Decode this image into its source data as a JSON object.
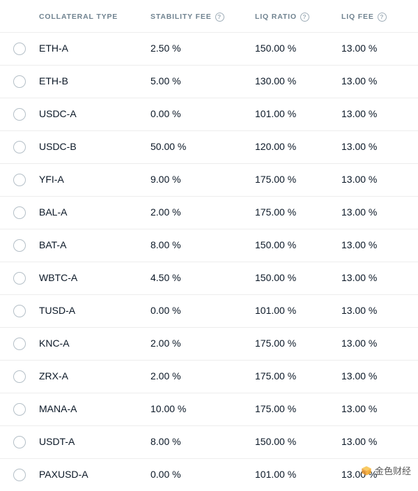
{
  "table": {
    "headers": {
      "collateral": "COLLATERAL TYPE",
      "stability": "STABILITY FEE",
      "liqratio": "LIQ RATIO",
      "liqfee": "LIQ FEE"
    },
    "rows": [
      {
        "collateral": "ETH-A",
        "stability": "2.50 %",
        "liqratio": "150.00 %",
        "liqfee": "13.00 %"
      },
      {
        "collateral": "ETH-B",
        "stability": "5.00 %",
        "liqratio": "130.00 %",
        "liqfee": "13.00 %"
      },
      {
        "collateral": "USDC-A",
        "stability": "0.00 %",
        "liqratio": "101.00 %",
        "liqfee": "13.00 %"
      },
      {
        "collateral": "USDC-B",
        "stability": "50.00 %",
        "liqratio": "120.00 %",
        "liqfee": "13.00 %"
      },
      {
        "collateral": "YFI-A",
        "stability": "9.00 %",
        "liqratio": "175.00 %",
        "liqfee": "13.00 %"
      },
      {
        "collateral": "BAL-A",
        "stability": "2.00 %",
        "liqratio": "175.00 %",
        "liqfee": "13.00 %"
      },
      {
        "collateral": "BAT-A",
        "stability": "8.00 %",
        "liqratio": "150.00 %",
        "liqfee": "13.00 %"
      },
      {
        "collateral": "WBTC-A",
        "stability": "4.50 %",
        "liqratio": "150.00 %",
        "liqfee": "13.00 %"
      },
      {
        "collateral": "TUSD-A",
        "stability": "0.00 %",
        "liqratio": "101.00 %",
        "liqfee": "13.00 %"
      },
      {
        "collateral": "KNC-A",
        "stability": "2.00 %",
        "liqratio": "175.00 %",
        "liqfee": "13.00 %"
      },
      {
        "collateral": "ZRX-A",
        "stability": "2.00 %",
        "liqratio": "175.00 %",
        "liqfee": "13.00 %"
      },
      {
        "collateral": "MANA-A",
        "stability": "10.00 %",
        "liqratio": "175.00 %",
        "liqfee": "13.00 %"
      },
      {
        "collateral": "USDT-A",
        "stability": "8.00 %",
        "liqratio": "150.00 %",
        "liqfee": "13.00 %"
      },
      {
        "collateral": "PAXUSD-A",
        "stability": "0.00 %",
        "liqratio": "101.00 %",
        "liqfee": "13.00 %"
      }
    ]
  },
  "colors": {
    "header_text": "#708390",
    "help_border": "#9fadb8",
    "radio_border": "#b4bfc7",
    "row_border": "#ededed",
    "cell_text": "#0a1726",
    "background": "#ffffff"
  },
  "watermark": {
    "text": "金色财经",
    "cube_color": "#f5a623"
  }
}
